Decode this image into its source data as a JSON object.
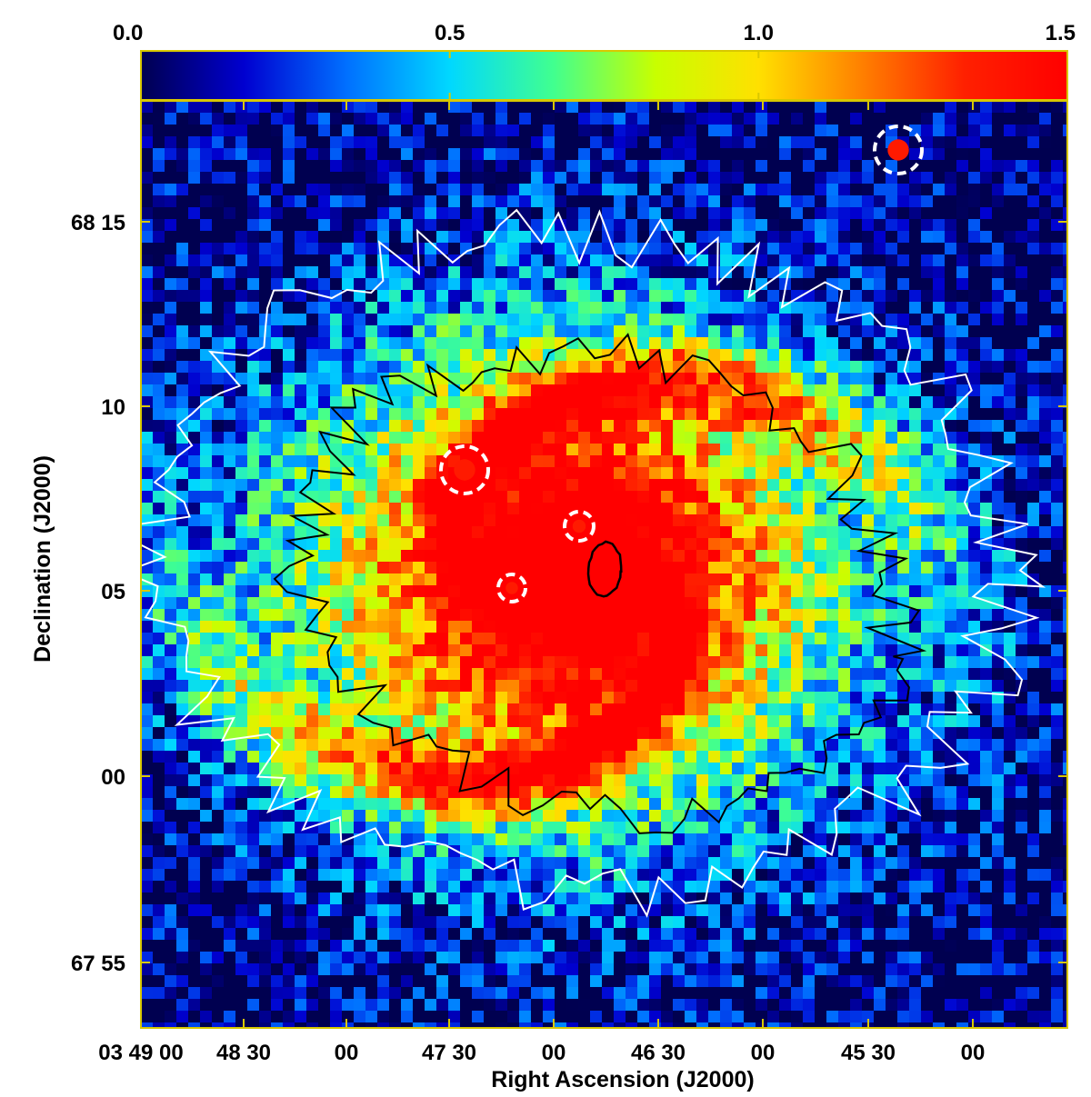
{
  "chart_data": {
    "type": "heatmap",
    "title": "",
    "colorbar": {
      "min": 0.0,
      "max": 1.5,
      "ticks": [
        {
          "value": 0.0,
          "label": "0.0"
        },
        {
          "value": 0.5,
          "label": "0.5"
        },
        {
          "value": 1.0,
          "label": "1.0"
        },
        {
          "value": 1.5,
          "label": "1.5"
        }
      ],
      "colormap": [
        "#000050",
        "#0000d0",
        "#0070ff",
        "#00d8ff",
        "#40ff90",
        "#c8ff00",
        "#ffe000",
        "#ff8000",
        "#ff2000",
        "#ff0000"
      ]
    },
    "xlabel": "Right Ascension (J2000)",
    "ylabel": "Declination (J2000)",
    "x_ticks": [
      {
        "value": "03 49 00",
        "label": "03 49 00"
      },
      {
        "value": "03 48 30",
        "label": "48 30"
      },
      {
        "value": "03 48 00",
        "label": "00"
      },
      {
        "value": "03 47 30",
        "label": "47 30"
      },
      {
        "value": "03 47 00",
        "label": "00"
      },
      {
        "value": "03 46 30",
        "label": "46 30"
      },
      {
        "value": "03 46 00",
        "label": "00"
      },
      {
        "value": "03 45 30",
        "label": "45 30"
      },
      {
        "value": "03 45 00",
        "label": "00"
      }
    ],
    "y_ticks": [
      {
        "value": "68 15",
        "label": "68 15"
      },
      {
        "value": "68 10",
        "label": "10"
      },
      {
        "value": "68 05",
        "label": "05"
      },
      {
        "value": "68 00",
        "label": "00"
      },
      {
        "value": "67 55",
        "label": "67 55"
      }
    ],
    "contours": {
      "levels": 2,
      "colors": [
        "#000000",
        "#ffffff"
      ]
    },
    "marked_sources": 5
  }
}
